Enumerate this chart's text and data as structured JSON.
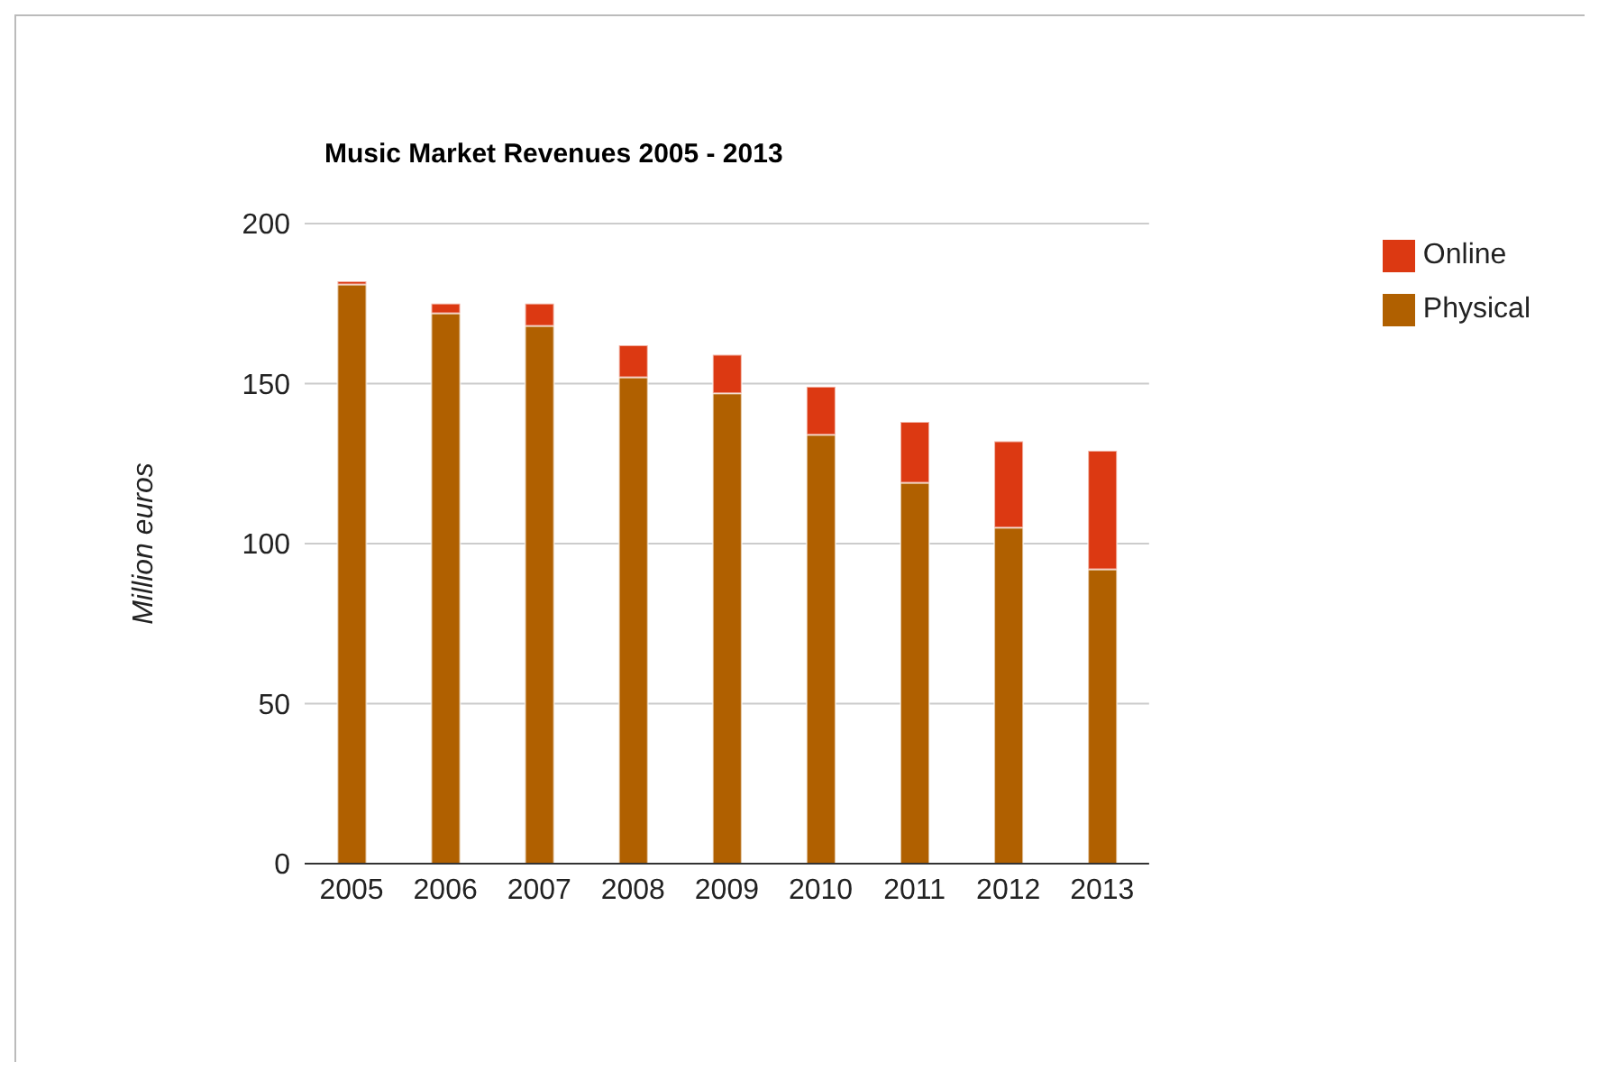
{
  "chart_data": {
    "type": "bar",
    "title": "Music Market Revenues 2005 - 2013",
    "ylabel": "Million euros",
    "categories": [
      "2005",
      "2006",
      "2007",
      "2008",
      "2009",
      "2010",
      "2011",
      "2012",
      "2013"
    ],
    "stacked": true,
    "series": [
      {
        "name": "Physical",
        "color": "#b06000",
        "values": [
          181,
          172,
          168,
          152,
          147,
          134,
          119,
          105,
          92
        ]
      },
      {
        "name": "Online",
        "color": "#dc3912",
        "values": [
          1,
          3,
          7,
          10,
          12,
          15,
          19,
          27,
          37
        ]
      }
    ],
    "ylim": [
      0,
      200
    ],
    "yticks": [
      0,
      50,
      100,
      150,
      200
    ],
    "grid": "y",
    "legend": "top right"
  }
}
